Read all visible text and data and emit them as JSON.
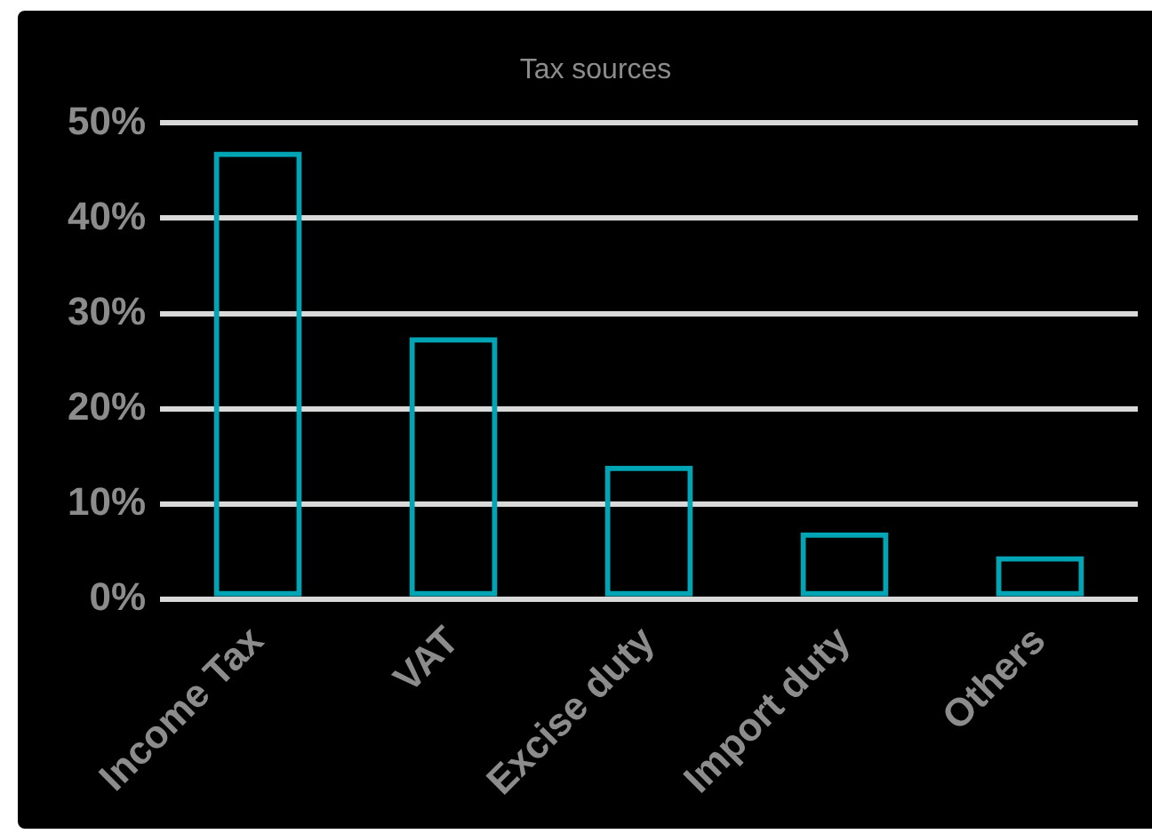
{
  "chart_data": {
    "type": "bar",
    "title": "Tax sources",
    "categories": [
      "Income Tax",
      "VAT",
      "Excise duty",
      "Import duty",
      "Others"
    ],
    "values": [
      47,
      27.5,
      14,
      7,
      4.5
    ],
    "color": "#00a5b5",
    "ylim": [
      0,
      50
    ],
    "yticks": [
      {
        "value": 0,
        "label": "0%"
      },
      {
        "value": 10,
        "label": "10%"
      },
      {
        "value": 20,
        "label": "20%"
      },
      {
        "value": 30,
        "label": "30%"
      },
      {
        "value": 40,
        "label": "40%"
      },
      {
        "value": 50,
        "label": "50%"
      }
    ],
    "grid": "y",
    "legend": false
  }
}
